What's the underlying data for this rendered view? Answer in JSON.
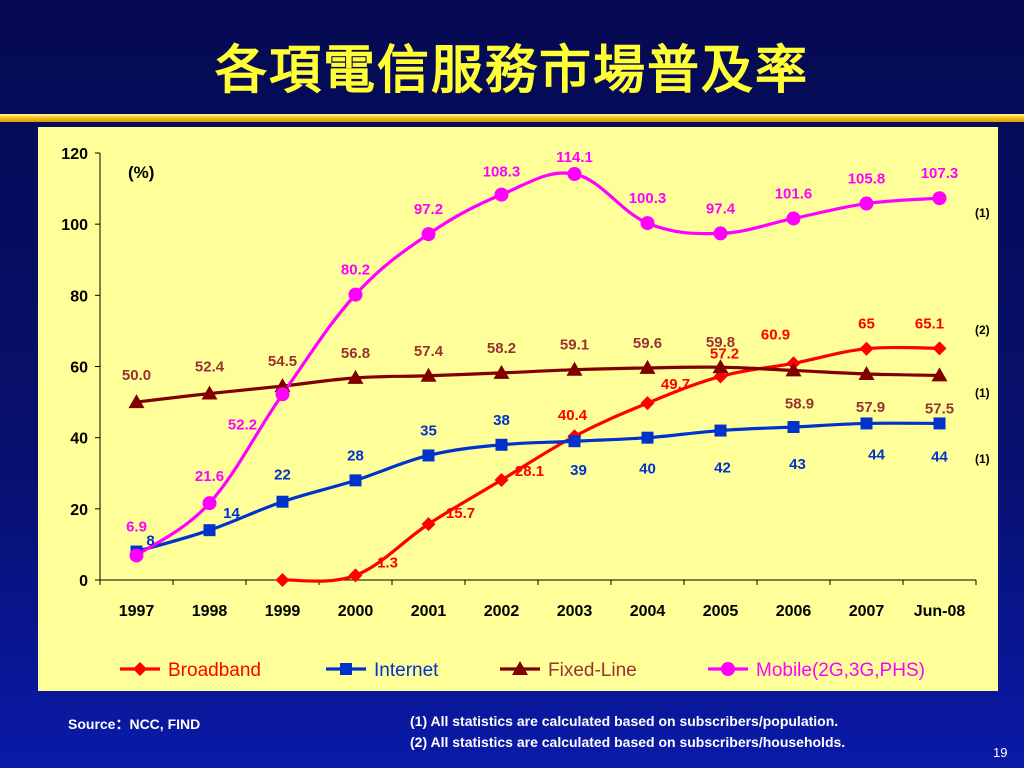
{
  "slide": {
    "title": "各項電信服務市場普及率",
    "source": "Source：NCC, FIND",
    "footnotes": [
      "(1) All statistics are calculated based on subscribers/population.",
      "(2) All statistics are calculated based on subscribers/households."
    ],
    "page_number": "19"
  },
  "chart_data": {
    "type": "line",
    "unit_label": "(%)",
    "categories": [
      "1997",
      "1998",
      "1999",
      "2000",
      "2001",
      "2002",
      "2003",
      "2004",
      "2005",
      "2006",
      "2007",
      "Jun-08"
    ],
    "ylim": [
      0,
      120
    ],
    "yticks": [
      "0",
      "20",
      "40",
      "60",
      "80",
      "100",
      "120"
    ],
    "legend_position": "bottom",
    "series": [
      {
        "name": "Broadband",
        "color": "#ff0000",
        "label_color": "#ff0000",
        "marker": "diamond",
        "values": [
          null,
          null,
          0,
          1.3,
          15.7,
          28.1,
          40.4,
          49.7,
          57.2,
          60.9,
          65,
          65.1
        ],
        "labels": [
          null,
          null,
          null,
          "1.3",
          "15.7",
          "28.1",
          "40.4",
          "49.7",
          "57.2",
          "60.9",
          "65",
          "65.1"
        ],
        "note": null
      },
      {
        "name": "Internet",
        "color": "#0033cc",
        "label_color": "#0033cc",
        "marker": "square",
        "values": [
          8,
          14,
          22,
          28,
          35,
          38,
          39,
          40,
          42,
          43,
          44,
          44
        ],
        "labels": [
          "8",
          "14",
          "22",
          "28",
          "35",
          "38",
          "39",
          "40",
          "42",
          "43",
          "44",
          "44"
        ],
        "note": "(1)"
      },
      {
        "name": "Fixed-Line",
        "color": "#800000",
        "label_color": "#993333",
        "marker": "triangle",
        "values": [
          50.0,
          52.4,
          54.5,
          56.8,
          57.4,
          58.2,
          59.1,
          59.6,
          59.8,
          58.9,
          57.9,
          57.5
        ],
        "labels": [
          "50.0",
          "52.4",
          "54.5",
          "56.8",
          "57.4",
          "58.2",
          "59.1",
          "59.6",
          "59.8",
          "58.9",
          "57.9",
          "57.5"
        ],
        "note": "(1)"
      },
      {
        "name": "Mobile(2G,3G,PHS)",
        "color": "#ff00ff",
        "label_color": "#ff00ff",
        "marker": "circle",
        "values": [
          6.9,
          21.6,
          52.2,
          80.2,
          97.2,
          108.3,
          114.1,
          100.3,
          97.4,
          101.6,
          105.8,
          107.3
        ],
        "labels": [
          "6.9",
          "21.6",
          "52.2",
          "80.2",
          "97.2",
          "108.3",
          "114.1",
          "100.3",
          "97.4",
          "101.6",
          "105.8",
          "107.3"
        ],
        "note": "(1)"
      }
    ],
    "extra_notes": [
      "(2)"
    ]
  }
}
